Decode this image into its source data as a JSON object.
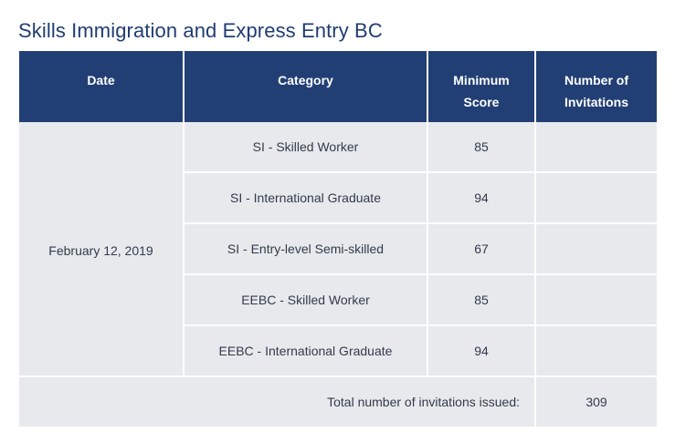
{
  "page": {
    "title": "Skills Immigration and Express Entry BC"
  },
  "table": {
    "headers": {
      "date": "Date",
      "category": "Category",
      "minimum_score_line1": "Minimum",
      "minimum_score_line2": "Score",
      "invitations_line1": "Number of",
      "invitations_line2": "Invitations"
    },
    "date": "February 12, 2019",
    "rows": [
      {
        "category": "SI - Skilled Worker",
        "min_score": "85",
        "invitations": ""
      },
      {
        "category": "SI - International Graduate",
        "min_score": "94",
        "invitations": ""
      },
      {
        "category": "SI - Entry-level Semi-skilled",
        "min_score": "67",
        "invitations": ""
      },
      {
        "category": "EEBC - Skilled Worker",
        "min_score": "85",
        "invitations": ""
      },
      {
        "category": "EEBC - International Graduate",
        "min_score": "94",
        "invitations": ""
      }
    ],
    "total_label": "Total number of invitations issued:",
    "total_value": "309"
  },
  "colors": {
    "header_bg": "#223f75",
    "cell_bg": "#e7e9ed",
    "title_color": "#1f3d73"
  }
}
